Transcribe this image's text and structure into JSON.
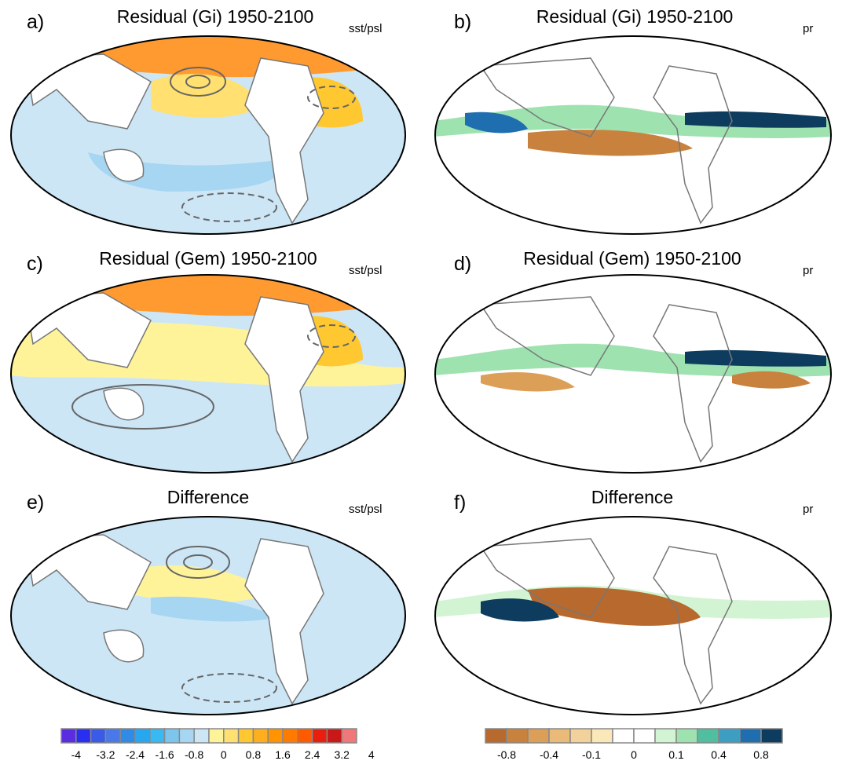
{
  "panels": [
    {
      "letter": "a)",
      "title": "Residual (Gi) 1950-2100",
      "variable": "sst/psl"
    },
    {
      "letter": "b)",
      "title": "Residual (Gi) 1950-2100",
      "variable": "pr"
    },
    {
      "letter": "c)",
      "title": "Residual (Gem) 1950-2100",
      "variable": "sst/psl"
    },
    {
      "letter": "d)",
      "title": "Residual (Gem) 1950-2100",
      "variable": "pr"
    },
    {
      "letter": "e)",
      "title": "Difference",
      "variable": "sst/psl"
    },
    {
      "letter": "f)",
      "title": "Difference",
      "variable": "pr"
    }
  ],
  "colorbars": {
    "sst": {
      "colors": [
        "#5a2ee0",
        "#2a2ef0",
        "#3a5ae8",
        "#4a78e8",
        "#2f8be6",
        "#28a6ee",
        "#3ab8f2",
        "#7cc6ee",
        "#a6d6f2",
        "#cce6f6",
        "#fff39a",
        "#ffe070",
        "#ffc830",
        "#ffae20",
        "#ff9400",
        "#ff7a00",
        "#ff5a00",
        "#e81e0e",
        "#c81818",
        "#f07878"
      ],
      "labels": [
        "-4",
        "-3.2",
        "-2.4",
        "-1.6",
        "-0.8",
        "0",
        "0.8",
        "1.6",
        "2.4",
        "3.2",
        "4"
      ]
    },
    "pr": {
      "colors": [
        "#b8692e",
        "#c8823e",
        "#dc9f58",
        "#eabb78",
        "#f2d29a",
        "#fae8b8",
        "#ffffff",
        "#ffffff",
        "#d2f4d2",
        "#9ee2b0",
        "#52bea0",
        "#3e9ec2",
        "#1f6eb0",
        "#0e3c5e"
      ],
      "labels": [
        "-0.8",
        "-0.4",
        "-0.1",
        "0",
        "0.1",
        "0.4",
        "0.8"
      ]
    }
  }
}
